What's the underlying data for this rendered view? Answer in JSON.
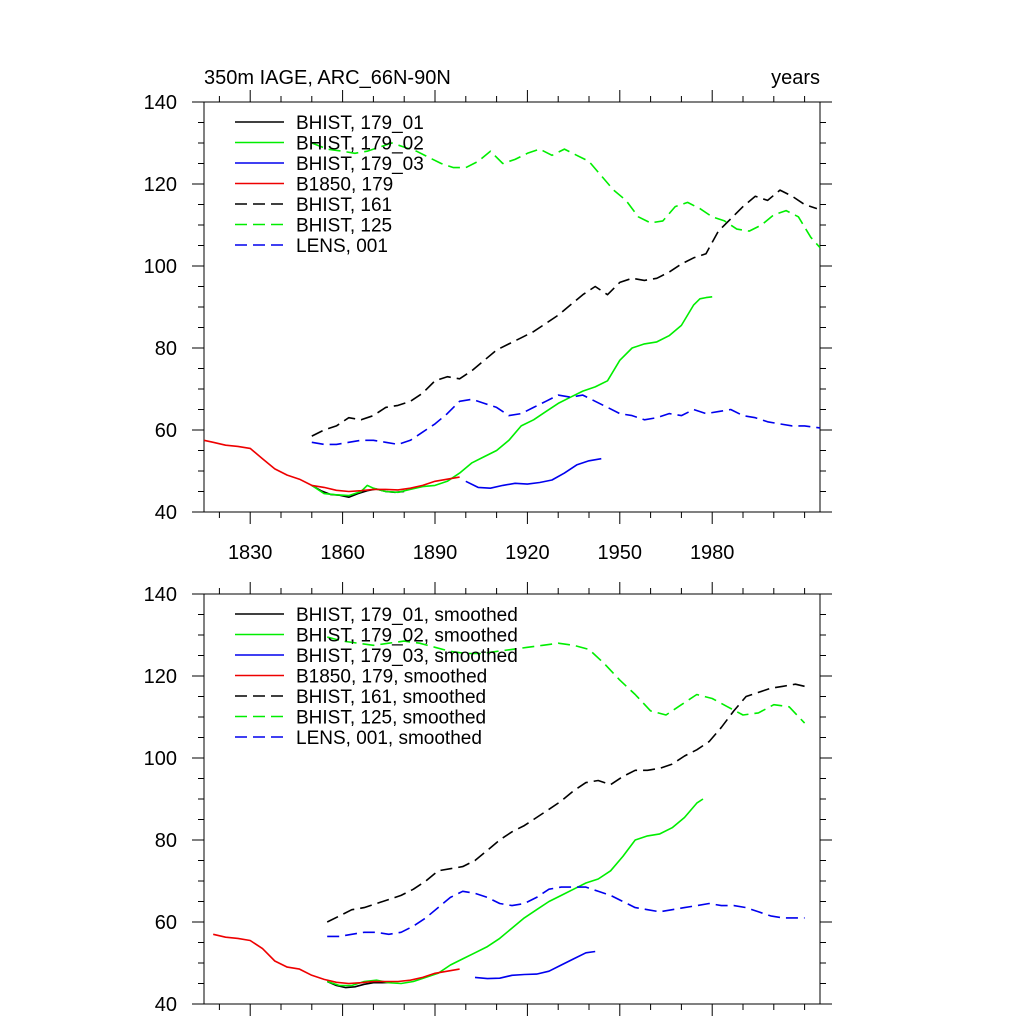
{
  "chart_data": [
    {
      "type": "line",
      "title": "350m IAGE, ARC_66N-90N",
      "units": "years",
      "xlim": [
        1815,
        2015
      ],
      "ylim": [
        40,
        140
      ],
      "xticks": [
        1830,
        1860,
        1890,
        1920,
        1950,
        1980
      ],
      "yticks": [
        40,
        60,
        80,
        100,
        120,
        140
      ],
      "show_xtick_labels": true,
      "legend_position": "top-left",
      "series": [
        {
          "name": "BHIST, 179_01",
          "color": "#000000",
          "dash": "solid",
          "x": [
            1850,
            1853,
            1856,
            1859,
            1862,
            1865,
            1868,
            1871,
            1874,
            1877,
            1880
          ],
          "y": [
            46.5,
            45.2,
            44.3,
            44.1,
            43.6,
            44.5,
            45.2,
            45.6,
            45.0,
            44.8,
            45.0
          ]
        },
        {
          "name": "BHIST, 179_02",
          "color": "#00ee00",
          "dash": "solid",
          "x": [
            1850,
            1854,
            1858,
            1862,
            1866,
            1868,
            1870,
            1874,
            1878,
            1882,
            1886,
            1890,
            1894,
            1898,
            1902,
            1906,
            1910,
            1914,
            1918,
            1922,
            1926,
            1930,
            1934,
            1938,
            1942,
            1946,
            1950,
            1954,
            1958,
            1962,
            1966,
            1970,
            1974,
            1976,
            1978,
            1980
          ],
          "y": [
            46.5,
            44.5,
            44.2,
            44.0,
            45.0,
            46.5,
            45.8,
            45.0,
            44.8,
            45.5,
            46.2,
            46.5,
            47.5,
            49.5,
            52.0,
            53.5,
            55.0,
            57.5,
            61.0,
            62.5,
            64.5,
            66.5,
            68.0,
            69.5,
            70.5,
            72.0,
            77.0,
            80.0,
            81.0,
            81.5,
            83.0,
            85.5,
            90.5,
            92.0,
            92.3,
            92.5
          ]
        },
        {
          "name": "BHIST, 179_03",
          "color": "#0000ee",
          "dash": "solid",
          "x": [
            1900,
            1904,
            1908,
            1912,
            1916,
            1920,
            1924,
            1928,
            1932,
            1936,
            1940,
            1944
          ],
          "y": [
            47.5,
            46.0,
            45.8,
            46.5,
            47.0,
            46.8,
            47.2,
            47.8,
            49.5,
            51.5,
            52.5,
            53.0
          ]
        },
        {
          "name": "B1850, 179",
          "color": "#ee0000",
          "dash": "solid",
          "x": [
            1815,
            1818,
            1822,
            1826,
            1830,
            1834,
            1838,
            1842,
            1846,
            1850,
            1854,
            1858,
            1862,
            1866,
            1870,
            1874,
            1878,
            1882,
            1886,
            1890,
            1894,
            1898
          ],
          "y": [
            57.5,
            57.0,
            56.3,
            56.0,
            55.5,
            53.0,
            50.5,
            49.0,
            48.0,
            46.5,
            46.0,
            45.3,
            45.0,
            45.2,
            45.5,
            45.5,
            45.4,
            45.8,
            46.5,
            47.5,
            48.0,
            48.5
          ]
        },
        {
          "name": "BHIST, 161",
          "color": "#000000",
          "dash": "dashed",
          "x": [
            1850,
            1854,
            1858,
            1862,
            1866,
            1870,
            1874,
            1878,
            1882,
            1886,
            1890,
            1894,
            1898,
            1902,
            1906,
            1910,
            1914,
            1918,
            1922,
            1926,
            1930,
            1934,
            1938,
            1942,
            1946,
            1950,
            1954,
            1958,
            1962,
            1966,
            1970,
            1974,
            1978,
            1982,
            1986,
            1990,
            1994,
            1998,
            2002,
            2006,
            2010,
            2014
          ],
          "y": [
            58.5,
            60.0,
            61.0,
            63.0,
            62.5,
            63.5,
            65.5,
            66.0,
            67.0,
            69.0,
            72.0,
            73.0,
            72.5,
            74.5,
            77.0,
            79.5,
            81.0,
            82.5,
            84.0,
            86.0,
            88.0,
            90.5,
            93.0,
            95.0,
            93.0,
            96.0,
            97.0,
            96.5,
            97.0,
            98.5,
            100.5,
            102.0,
            103.0,
            108.5,
            111.5,
            114.5,
            117.0,
            116.0,
            118.5,
            117.0,
            115.0,
            114.0
          ]
        },
        {
          "name": "BHIST, 125",
          "color": "#00ee00",
          "dash": "dashed",
          "x": [
            1850,
            1855,
            1860,
            1864,
            1868,
            1872,
            1876,
            1880,
            1884,
            1888,
            1892,
            1896,
            1900,
            1904,
            1908,
            1912,
            1916,
            1920,
            1924,
            1928,
            1932,
            1936,
            1940,
            1944,
            1948,
            1952,
            1956,
            1960,
            1964,
            1968,
            1972,
            1976,
            1980,
            1984,
            1988,
            1992,
            1996,
            2000,
            2004,
            2008,
            2012,
            2015
          ],
          "y": [
            130.0,
            128.5,
            128.0,
            127.5,
            128.0,
            129.0,
            130.0,
            129.0,
            128.0,
            126.5,
            125.0,
            124.0,
            124.0,
            125.5,
            128.0,
            125.0,
            126.0,
            127.5,
            128.5,
            127.0,
            128.5,
            127.0,
            125.5,
            122.0,
            118.5,
            116.0,
            112.0,
            110.5,
            111.0,
            114.5,
            115.5,
            114.0,
            112.0,
            111.0,
            109.0,
            108.5,
            110.0,
            112.5,
            113.5,
            112.0,
            107.0,
            104.5
          ]
        },
        {
          "name": "LENS, 001",
          "color": "#0000ee",
          "dash": "dashed",
          "x": [
            1850,
            1854,
            1858,
            1862,
            1866,
            1870,
            1874,
            1878,
            1882,
            1886,
            1890,
            1894,
            1898,
            1902,
            1906,
            1910,
            1914,
            1918,
            1922,
            1926,
            1930,
            1934,
            1938,
            1942,
            1946,
            1950,
            1954,
            1958,
            1962,
            1966,
            1970,
            1974,
            1978,
            1982,
            1986,
            1990,
            1994,
            1998,
            2002,
            2006,
            2010,
            2015
          ],
          "y": [
            57.0,
            56.5,
            56.5,
            57.0,
            57.5,
            57.5,
            57.0,
            56.5,
            57.5,
            59.5,
            61.5,
            64.0,
            67.0,
            67.5,
            66.5,
            65.5,
            63.5,
            64.0,
            65.5,
            67.0,
            68.5,
            68.0,
            68.5,
            67.0,
            65.5,
            64.0,
            63.5,
            62.5,
            63.0,
            64.0,
            63.5,
            65.0,
            64.0,
            64.5,
            65.0,
            63.5,
            63.0,
            62.0,
            61.5,
            61.0,
            61.0,
            60.5
          ]
        }
      ]
    },
    {
      "type": "line",
      "title": "",
      "units": "",
      "xlim": [
        1815,
        2015
      ],
      "ylim": [
        40,
        140
      ],
      "xticks": [
        1830,
        1860,
        1890,
        1920,
        1950,
        1980
      ],
      "yticks": [
        40,
        60,
        80,
        100,
        120,
        140
      ],
      "show_xtick_labels": false,
      "legend_position": "top-left",
      "series": [
        {
          "name": "BHIST, 179_01, smoothed",
          "color": "#000000",
          "dash": "solid",
          "x": [
            1855,
            1858,
            1861,
            1864,
            1867,
            1870,
            1873,
            1876
          ],
          "y": [
            45.5,
            44.5,
            44.0,
            44.2,
            44.8,
            45.2,
            45.2,
            45.3
          ]
        },
        {
          "name": "BHIST, 179_02, smoothed",
          "color": "#00ee00",
          "dash": "solid",
          "x": [
            1855,
            1859,
            1863,
            1867,
            1871,
            1875,
            1879,
            1883,
            1887,
            1891,
            1895,
            1899,
            1903,
            1907,
            1911,
            1915,
            1919,
            1923,
            1927,
            1931,
            1935,
            1939,
            1943,
            1947,
            1951,
            1955,
            1959,
            1963,
            1967,
            1971,
            1975,
            1977
          ],
          "y": [
            45.5,
            44.5,
            44.5,
            45.5,
            45.8,
            45.2,
            45.0,
            45.5,
            46.5,
            47.5,
            49.5,
            51.0,
            52.5,
            54.0,
            56.0,
            58.5,
            61.0,
            63.0,
            65.0,
            66.5,
            68.0,
            69.5,
            70.5,
            72.5,
            76.0,
            80.0,
            81.0,
            81.5,
            83.0,
            85.5,
            89.0,
            90.0
          ]
        },
        {
          "name": "BHIST, 179_03, smoothed",
          "color": "#0000ee",
          "dash": "solid",
          "x": [
            1903,
            1907,
            1911,
            1915,
            1919,
            1923,
            1927,
            1931,
            1935,
            1939,
            1942
          ],
          "y": [
            46.5,
            46.2,
            46.3,
            47.0,
            47.2,
            47.3,
            48.0,
            49.5,
            51.0,
            52.5,
            52.8
          ]
        },
        {
          "name": "B1850, 179, smoothed",
          "color": "#ee0000",
          "dash": "solid",
          "x": [
            1818,
            1822,
            1826,
            1830,
            1834,
            1838,
            1842,
            1846,
            1850,
            1854,
            1858,
            1862,
            1866,
            1870,
            1874,
            1878,
            1882,
            1886,
            1890,
            1894,
            1898
          ],
          "y": [
            57.0,
            56.3,
            56.0,
            55.5,
            53.5,
            50.5,
            49.0,
            48.5,
            47.0,
            46.0,
            45.3,
            45.0,
            45.2,
            45.5,
            45.5,
            45.5,
            45.8,
            46.5,
            47.5,
            48.0,
            48.5
          ]
        },
        {
          "name": "BHIST, 161, smoothed",
          "color": "#000000",
          "dash": "dashed",
          "x": [
            1855,
            1859,
            1863,
            1867,
            1871,
            1875,
            1879,
            1883,
            1887,
            1891,
            1895,
            1899,
            1903,
            1907,
            1911,
            1915,
            1919,
            1923,
            1927,
            1931,
            1935,
            1939,
            1943,
            1947,
            1951,
            1955,
            1959,
            1963,
            1967,
            1971,
            1975,
            1979,
            1983,
            1987,
            1991,
            1995,
            1999,
            2003,
            2007,
            2010
          ],
          "y": [
            60.0,
            61.5,
            63.0,
            63.5,
            64.5,
            65.5,
            66.5,
            68.0,
            70.0,
            72.5,
            73.0,
            73.5,
            75.0,
            77.5,
            80.0,
            82.0,
            83.5,
            85.5,
            87.5,
            89.5,
            92.0,
            94.0,
            94.5,
            93.5,
            95.5,
            97.0,
            97.0,
            97.5,
            98.5,
            100.5,
            102.0,
            104.0,
            107.5,
            111.5,
            115.0,
            116.0,
            117.0,
            117.5,
            118.0,
            117.5
          ]
        },
        {
          "name": "BHIST, 125, smoothed",
          "color": "#00ee00",
          "dash": "dashed",
          "x": [
            1855,
            1860,
            1865,
            1870,
            1875,
            1880,
            1885,
            1890,
            1895,
            1900,
            1905,
            1910,
            1915,
            1920,
            1925,
            1930,
            1935,
            1940,
            1945,
            1950,
            1955,
            1960,
            1965,
            1970,
            1975,
            1980,
            1985,
            1990,
            1995,
            2000,
            2005,
            2010
          ],
          "y": [
            129.5,
            128.5,
            128.0,
            127.5,
            128.0,
            128.5,
            128.0,
            127.0,
            126.0,
            125.5,
            125.5,
            126.0,
            126.5,
            127.0,
            127.5,
            128.0,
            127.5,
            126.5,
            123.0,
            119.0,
            115.5,
            111.5,
            110.5,
            113.0,
            115.5,
            114.5,
            112.5,
            110.5,
            111.0,
            113.0,
            112.5,
            108.5
          ]
        },
        {
          "name": "LENS, 001, smoothed",
          "color": "#0000ee",
          "dash": "dashed",
          "x": [
            1855,
            1859,
            1863,
            1867,
            1871,
            1875,
            1879,
            1883,
            1887,
            1891,
            1895,
            1899,
            1903,
            1907,
            1911,
            1915,
            1919,
            1923,
            1927,
            1931,
            1935,
            1939,
            1943,
            1947,
            1951,
            1955,
            1959,
            1963,
            1967,
            1971,
            1975,
            1979,
            1983,
            1987,
            1991,
            1995,
            1999,
            2003,
            2007,
            2010
          ],
          "y": [
            56.5,
            56.5,
            57.0,
            57.5,
            57.5,
            57.0,
            57.5,
            59.0,
            61.0,
            63.5,
            66.0,
            67.5,
            67.0,
            66.0,
            64.5,
            64.0,
            64.5,
            66.0,
            68.0,
            68.5,
            68.5,
            68.5,
            67.5,
            66.5,
            65.0,
            63.5,
            63.0,
            62.5,
            63.0,
            63.5,
            64.0,
            64.5,
            64.0,
            64.0,
            63.5,
            62.5,
            61.5,
            61.0,
            61.0,
            61.0
          ]
        }
      ]
    }
  ]
}
